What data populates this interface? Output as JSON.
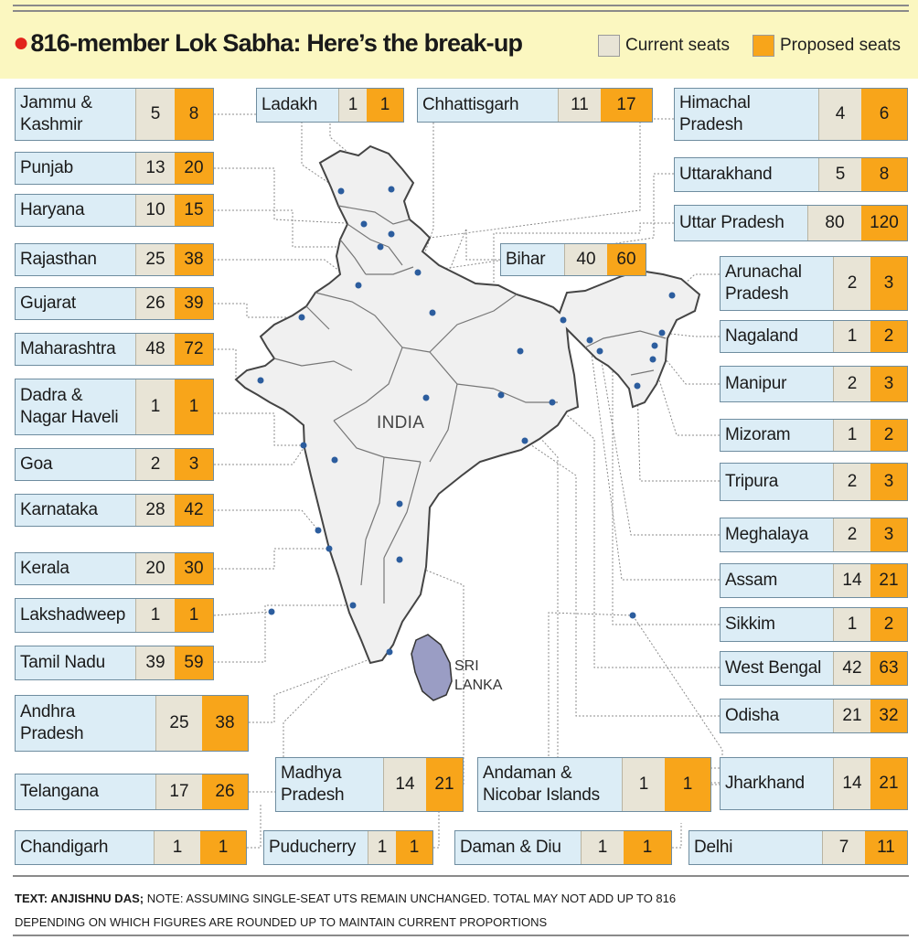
{
  "header": {
    "title": "816-member Lok Sabha: Here’s the break-up",
    "legend_current": "Current seats",
    "legend_proposed": "Proposed seats"
  },
  "colors": {
    "current": "#e8e4d6",
    "proposed": "#f8a51a",
    "state_box": "#dcedf6",
    "header_bg": "#fbf7c0",
    "map_fill": "#f0f0f0",
    "sri_lanka": "#9a9dc4"
  },
  "map_labels": {
    "india": "INDIA",
    "sri_lanka": [
      "SRI",
      "LANKA"
    ]
  },
  "chart_data": {
    "type": "table",
    "title": "816-member Lok Sabha: Here’s the break-up",
    "series": [
      {
        "name": "Current seats",
        "color": "#e8e4d6"
      },
      {
        "name": "Proposed seats",
        "color": "#f8a51a"
      }
    ],
    "rows": [
      {
        "name": "Jammu & Kashmir",
        "current": 5,
        "proposed": 8
      },
      {
        "name": "Punjab",
        "current": 13,
        "proposed": 20
      },
      {
        "name": "Haryana",
        "current": 10,
        "proposed": 15
      },
      {
        "name": "Rajasthan",
        "current": 25,
        "proposed": 38
      },
      {
        "name": "Gujarat",
        "current": 26,
        "proposed": 39
      },
      {
        "name": "Maharashtra",
        "current": 48,
        "proposed": 72
      },
      {
        "name": "Dadra & Nagar Haveli",
        "current": 1,
        "proposed": 1
      },
      {
        "name": "Goa",
        "current": 2,
        "proposed": 3
      },
      {
        "name": "Karnataka",
        "current": 28,
        "proposed": 42
      },
      {
        "name": "Kerala",
        "current": 20,
        "proposed": 30
      },
      {
        "name": "Lakshadweep",
        "current": 1,
        "proposed": 1
      },
      {
        "name": "Tamil Nadu",
        "current": 39,
        "proposed": 59
      },
      {
        "name": "Andhra Pradesh",
        "current": 25,
        "proposed": 38
      },
      {
        "name": "Telangana",
        "current": 17,
        "proposed": 26
      },
      {
        "name": "Chandigarh",
        "current": 1,
        "proposed": 1
      },
      {
        "name": "Ladakh",
        "current": 1,
        "proposed": 1
      },
      {
        "name": "Chhattisgarh",
        "current": 11,
        "proposed": 17
      },
      {
        "name": "Bihar",
        "current": 40,
        "proposed": 60
      },
      {
        "name": "Madhya Pradesh",
        "current": 14,
        "proposed": 21
      },
      {
        "name": "Puducherry",
        "current": 1,
        "proposed": 1
      },
      {
        "name": "Andaman & Nicobar Islands",
        "current": 1,
        "proposed": 1
      },
      {
        "name": "Daman & Diu",
        "current": 1,
        "proposed": 1
      },
      {
        "name": "Himachal Pradesh",
        "current": 4,
        "proposed": 6
      },
      {
        "name": "Uttarakhand",
        "current": 5,
        "proposed": 8
      },
      {
        "name": "Uttar Pradesh",
        "current": 80,
        "proposed": 120
      },
      {
        "name": "Arunachal Pradesh",
        "current": 2,
        "proposed": 3
      },
      {
        "name": "Nagaland",
        "current": 1,
        "proposed": 2
      },
      {
        "name": "Manipur",
        "current": 2,
        "proposed": 3
      },
      {
        "name": "Mizoram",
        "current": 1,
        "proposed": 2
      },
      {
        "name": "Tripura",
        "current": 2,
        "proposed": 3
      },
      {
        "name": "Meghalaya",
        "current": 2,
        "proposed": 3
      },
      {
        "name": "Assam",
        "current": 14,
        "proposed": 21
      },
      {
        "name": "Sikkim",
        "current": 1,
        "proposed": 2
      },
      {
        "name": "West Bengal",
        "current": 42,
        "proposed": 63
      },
      {
        "name": "Odisha",
        "current": 21,
        "proposed": 32
      },
      {
        "name": "Jharkhand",
        "current": 14,
        "proposed": 21
      },
      {
        "name": "Delhi",
        "current": 7,
        "proposed": 11
      }
    ]
  },
  "footer": {
    "credit_label": "TEXT: ANJISHNU DAS;",
    "note": "NOTE: ASSUMING SINGLE-SEAT UTS REMAIN UNCHANGED. TOTAL MAY NOT ADD UP TO 816 DEPENDING ON WHICH FIGURES ARE ROUNDED UP TO MAINTAIN CURRENT PROPORTIONS"
  }
}
